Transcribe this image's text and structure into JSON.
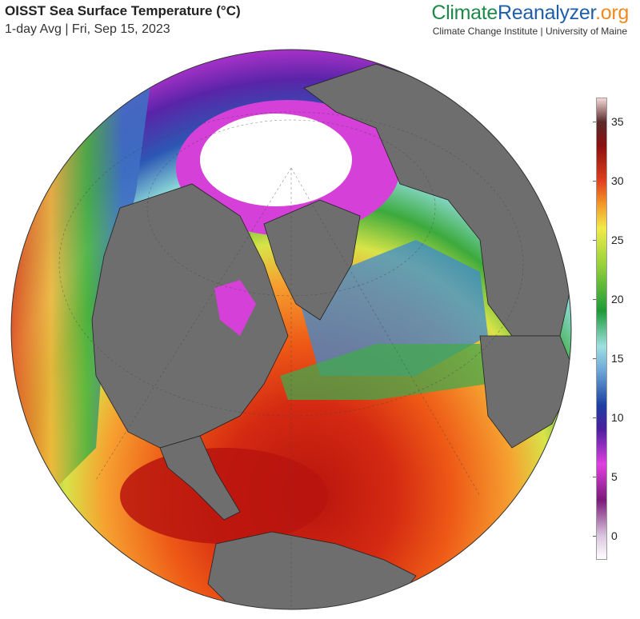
{
  "header": {
    "title": "OISST Sea Surface Temperature (°C)",
    "subtitle": "1-day Avg | Fri, Sep 15, 2023"
  },
  "brand": {
    "part1": "Climate",
    "part2": "Reanalyzer",
    "part3": ".org",
    "subtitle": "Climate Change Institute | University of Maine",
    "colors": {
      "part1": "#1e8a4a",
      "part2": "#1e5fa8",
      "part3": "#f08a1c"
    }
  },
  "colorbar": {
    "min": -2,
    "max": 37,
    "ticks": [
      "35",
      "30",
      "25",
      "20",
      "15",
      "10",
      "5",
      "0"
    ],
    "tick_values": [
      35,
      30,
      25,
      20,
      15,
      10,
      5,
      0
    ],
    "stops": [
      {
        "value": -2,
        "color": "#ffffff"
      },
      {
        "value": 0,
        "color": "#d9c4de"
      },
      {
        "value": 3,
        "color": "#7a1a7a"
      },
      {
        "value": 6,
        "color": "#e040e0"
      },
      {
        "value": 9,
        "color": "#4b1f9e"
      },
      {
        "value": 11,
        "color": "#1c3fa0"
      },
      {
        "value": 14,
        "color": "#6fa8d8"
      },
      {
        "value": 16,
        "color": "#9fe0e0"
      },
      {
        "value": 19,
        "color": "#1e9a3a"
      },
      {
        "value": 23,
        "color": "#9ad23c"
      },
      {
        "value": 26,
        "color": "#f2ea4a"
      },
      {
        "value": 28,
        "color": "#f39a2a"
      },
      {
        "value": 30,
        "color": "#e0401e"
      },
      {
        "value": 33,
        "color": "#8b1010"
      },
      {
        "value": 35,
        "color": "#5a2a2a"
      },
      {
        "value": 37,
        "color": "#f5d8d8"
      }
    ]
  },
  "map": {
    "projection": "orthographic",
    "land_color": "#6e6e6e",
    "sea_ice_color": "#ffffff"
  }
}
